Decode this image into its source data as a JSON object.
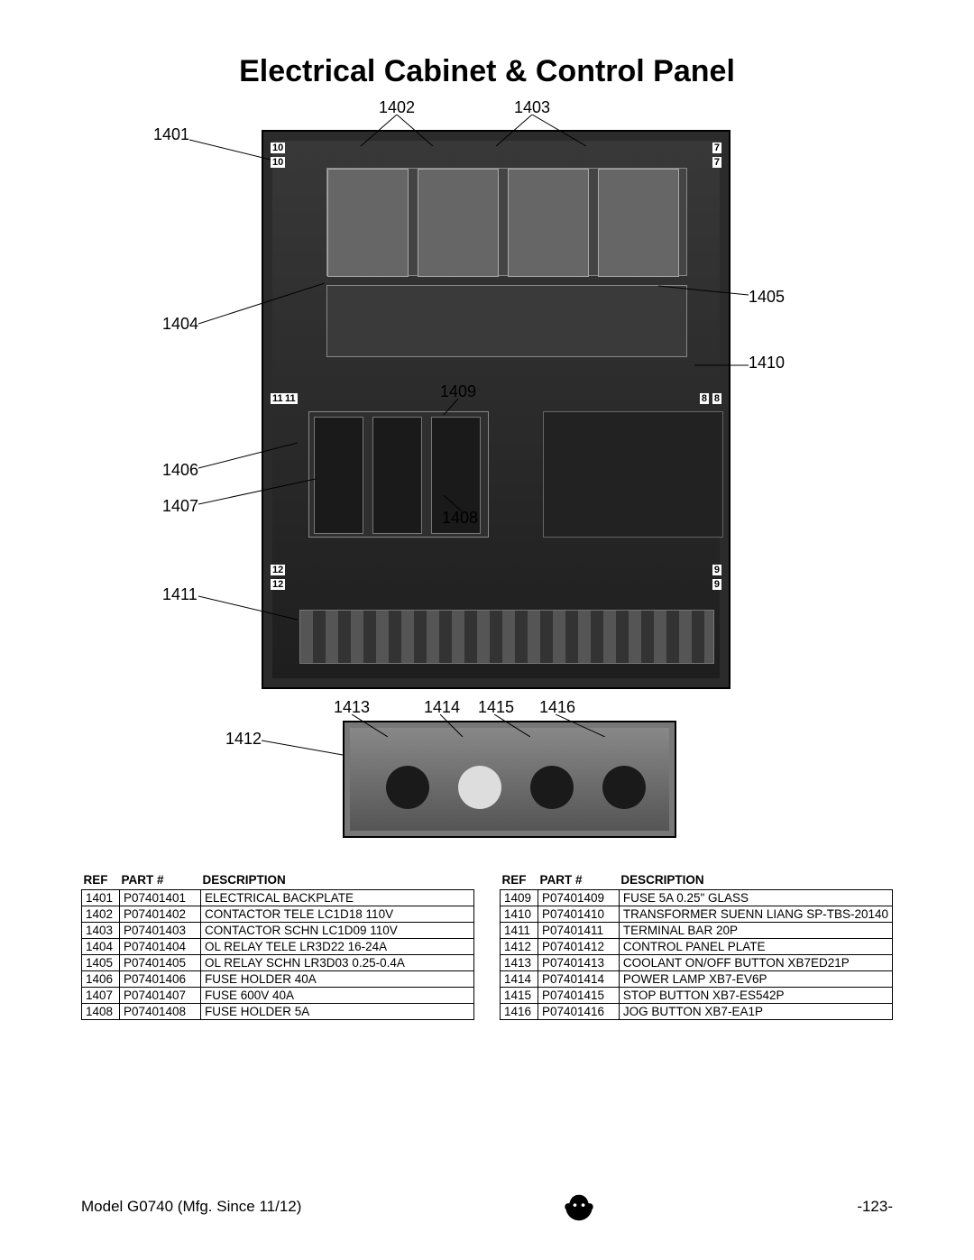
{
  "title": "Electrical Cabinet & Control Panel",
  "callouts": {
    "c1401": "1401",
    "c1402": "1402",
    "c1403": "1403",
    "c1404": "1404",
    "c1405": "1405",
    "c1406": "1406",
    "c1407": "1407",
    "c1408": "1408",
    "c1409": "1409",
    "c1410": "1410",
    "c1411": "1411",
    "c1412": "1412",
    "c1413": "1413",
    "c1414": "1414",
    "c1415": "1415",
    "c1416": "1416"
  },
  "table_headers": {
    "ref": "REF",
    "part": "PART #",
    "desc": "DESCRIPTION"
  },
  "left_table": [
    {
      "ref": "1401",
      "pn": "P07401401",
      "desc": "ELECTRICAL BACKPLATE"
    },
    {
      "ref": "1402",
      "pn": "P07401402",
      "desc": "CONTACTOR TELE LC1D18 110V"
    },
    {
      "ref": "1403",
      "pn": "P07401403",
      "desc": "CONTACTOR SCHN LC1D09 110V"
    },
    {
      "ref": "1404",
      "pn": "P07401404",
      "desc": "OL RELAY TELE LR3D22 16-24A"
    },
    {
      "ref": "1405",
      "pn": "P07401405",
      "desc": "OL RELAY SCHN LR3D03 0.25-0.4A"
    },
    {
      "ref": "1406",
      "pn": "P07401406",
      "desc": "FUSE HOLDER 40A"
    },
    {
      "ref": "1407",
      "pn": "P07401407",
      "desc": "FUSE 600V 40A"
    },
    {
      "ref": "1408",
      "pn": "P07401408",
      "desc": "FUSE HOLDER 5A"
    }
  ],
  "right_table": [
    {
      "ref": "1409",
      "pn": "P07401409",
      "desc": "FUSE 5A 0.25\" GLASS"
    },
    {
      "ref": "1410",
      "pn": "P07401410",
      "desc": "TRANSFORMER SUENN LIANG SP-TBS-20140"
    },
    {
      "ref": "1411",
      "pn": "P07401411",
      "desc": "TERMINAL BAR 20P"
    },
    {
      "ref": "1412",
      "pn": "P07401412",
      "desc": "CONTROL PANEL PLATE"
    },
    {
      "ref": "1413",
      "pn": "P07401413",
      "desc": "COOLANT ON/OFF BUTTON XB7ED21P"
    },
    {
      "ref": "1414",
      "pn": "P07401414",
      "desc": "POWER LAMP XB7-EV6P"
    },
    {
      "ref": "1415",
      "pn": "P07401415",
      "desc": "STOP BUTTON XB7-ES542P"
    },
    {
      "ref": "1416",
      "pn": "P07401416",
      "desc": "JOG BUTTON XB7-EA1P"
    }
  ],
  "footer": {
    "model": "Model G0740 (Mfg. Since 11/12)",
    "page": "-123-"
  },
  "styling": {
    "page_bg": "#ffffff",
    "text_color": "#000000",
    "title_fontsize_pt": 26,
    "body_fontsize_pt": 10,
    "callout_fontsize_pt": 13,
    "table_border_color": "#000000",
    "photo_border_color": "#000000",
    "photo_bg": "#2b2b2b",
    "subphoto_bg": "#777777"
  }
}
